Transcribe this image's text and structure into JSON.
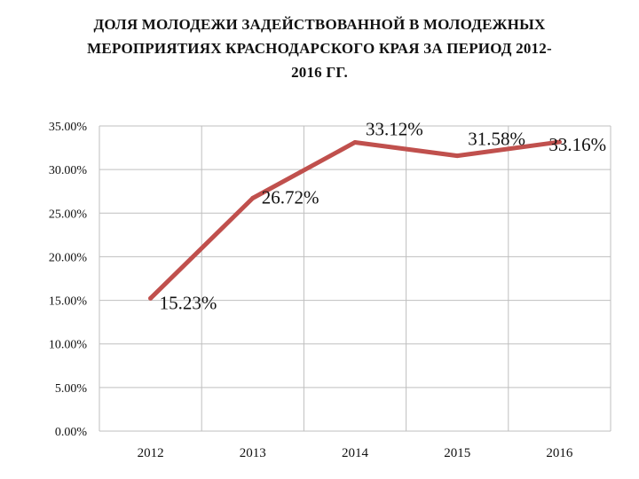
{
  "chart_data": {
    "type": "line",
    "title_lines": [
      "ДОЛЯ МОЛОДЕЖИ ЗАДЕЙСТВОВАННОЙ В МОЛОДЕЖНЫХ",
      "МЕРОПРИЯТИЯХ КРАСНОДАРСКОГО КРАЯ ЗА ПЕРИОД 2012-",
      "2016 ГГ."
    ],
    "categories": [
      "2012",
      "2013",
      "2014",
      "2015",
      "2016"
    ],
    "values": [
      15.23,
      26.72,
      33.12,
      31.58,
      33.16
    ],
    "data_labels": [
      "15.23%",
      "26.72%",
      "33.12%",
      "31.58%",
      "33.16%"
    ],
    "y_ticks": [
      "0.00%",
      "5.00%",
      "10.00%",
      "15.00%",
      "20.00%",
      "25.00%",
      "30.00%",
      "35.00%"
    ],
    "ylim": [
      0,
      35
    ],
    "grid": true,
    "legend": "none",
    "line_color": "#c0504d"
  }
}
